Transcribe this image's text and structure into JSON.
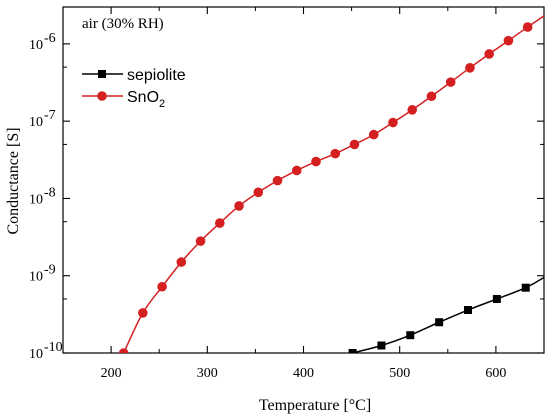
{
  "chart_data": {
    "type": "line",
    "title": "",
    "annotation": "air (30% RH)",
    "xlabel": "Temperature [°C]",
    "ylabel": "Conductance [S]",
    "xlim": [
      150,
      650
    ],
    "ylim": [
      1e-10,
      3e-06
    ],
    "yscale": "log",
    "grid": false,
    "legend_position": "top-left",
    "x_ticks": [
      200,
      300,
      400,
      500,
      600
    ],
    "y_ticks": [
      {
        "value": 1e-10,
        "base": "10",
        "exp": "-10"
      },
      {
        "value": 1e-09,
        "base": "10",
        "exp": "-9"
      },
      {
        "value": 1e-08,
        "base": "10",
        "exp": "-8"
      },
      {
        "value": 1e-07,
        "base": "10",
        "exp": "-7"
      },
      {
        "value": 1e-06,
        "base": "10",
        "exp": "-6"
      }
    ],
    "series": [
      {
        "name": "sepiolite",
        "color": "#000000",
        "marker": "square",
        "x": [
          451,
          481,
          511,
          541,
          571,
          601,
          631
        ],
        "y": [
          1e-10,
          1.25e-10,
          1.7e-10,
          2.5e-10,
          3.6e-10,
          5e-10,
          7e-10
        ],
        "curve_end": {
          "x": 650,
          "y": 9.5e-10
        }
      },
      {
        "name": "SnO2",
        "legend_base": "SnO",
        "legend_sub": "2",
        "color": "#d42020",
        "marker": "circle",
        "x": [
          213,
          233,
          253,
          273,
          293,
          313,
          333,
          353,
          373,
          393,
          413,
          433,
          453,
          473,
          493,
          513,
          533,
          553,
          573,
          593,
          613,
          633
        ],
        "y": [
          1e-10,
          3.3e-10,
          7.2e-10,
          1.5e-09,
          2.8e-09,
          4.8e-09,
          8e-09,
          1.2e-08,
          1.7e-08,
          2.3e-08,
          3e-08,
          3.8e-08,
          5e-08,
          6.7e-08,
          9.6e-08,
          1.4e-07,
          2.1e-07,
          3.2e-07,
          4.9e-07,
          7.4e-07,
          1.1e-06,
          1.65e-06
        ],
        "curve_end": {
          "x": 650,
          "y": 2.3e-06
        }
      }
    ]
  }
}
